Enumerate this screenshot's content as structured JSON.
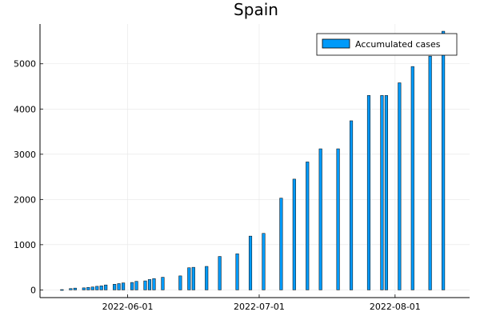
{
  "chart_data": {
    "type": "bar",
    "title": "Spain",
    "xlabel": "",
    "ylabel": "",
    "x_axis": "date",
    "xlim": [
      "2022-05-12",
      "2022-08-18"
    ],
    "ylim": [
      -170,
      5880
    ],
    "x_ticks": [
      "2022-06-01",
      "2022-07-01",
      "2022-08-01"
    ],
    "y_ticks": [
      0,
      1000,
      2000,
      3000,
      4000,
      5000
    ],
    "grid": true,
    "legend_position": "top-right",
    "bar_color": "#009af9",
    "series": [
      {
        "name": "Accumulated cases",
        "dates": [
          "2022-05-17",
          "2022-05-19",
          "2022-05-20",
          "2022-05-22",
          "2022-05-23",
          "2022-05-24",
          "2022-05-25",
          "2022-05-26",
          "2022-05-27",
          "2022-05-29",
          "2022-05-30",
          "2022-05-31",
          "2022-06-02",
          "2022-06-03",
          "2022-06-05",
          "2022-06-06",
          "2022-06-07",
          "2022-06-09",
          "2022-06-13",
          "2022-06-15",
          "2022-06-16",
          "2022-06-19",
          "2022-06-22",
          "2022-06-26",
          "2022-06-29",
          "2022-07-02",
          "2022-07-06",
          "2022-07-09",
          "2022-07-12",
          "2022-07-15",
          "2022-07-19",
          "2022-07-22",
          "2022-07-26",
          "2022-07-29",
          "2022-07-30",
          "2022-08-02",
          "2022-08-05",
          "2022-08-09",
          "2022-08-12"
        ],
        "values": [
          7,
          30,
          40,
          45,
          55,
          65,
          80,
          90,
          110,
          125,
          140,
          155,
          165,
          190,
          200,
          230,
          250,
          280,
          310,
          490,
          500,
          520,
          740,
          800,
          1190,
          1250,
          2030,
          2450,
          2830,
          3120,
          3120,
          3740,
          4300,
          4300,
          4300,
          4580,
          4940,
          5170,
          5720
        ]
      }
    ]
  }
}
